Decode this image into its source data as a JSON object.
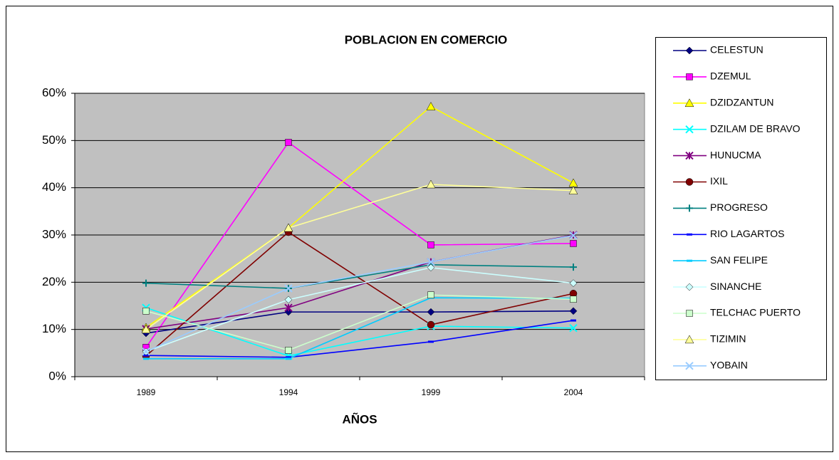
{
  "chart_data": {
    "type": "line",
    "title": "POBLACION  EN COMERCIO",
    "x_label": "AÑOS",
    "categories": [
      "1989",
      "1994",
      "1999",
      "2004"
    ],
    "ylim": [
      0,
      60
    ],
    "yticks": [
      {
        "value": 0,
        "label": "0%"
      },
      {
        "value": 10,
        "label": "10%"
      },
      {
        "value": 20,
        "label": "20%"
      },
      {
        "value": 30,
        "label": "30%"
      },
      {
        "value": 40,
        "label": "40%"
      },
      {
        "value": 50,
        "label": "50%"
      },
      {
        "value": 60,
        "label": "60%"
      }
    ],
    "grid": true,
    "plot_background": "#c0c0c0",
    "legend": "right",
    "series": [
      {
        "name": "CELESTUN",
        "color": "#000080",
        "marker": "diamond",
        "values": [
          9.2,
          13.7,
          13.7,
          13.9
        ]
      },
      {
        "name": "DZEMUL",
        "color": "#ff00ff",
        "marker": "square",
        "values": [
          6.2,
          49.6,
          27.9,
          28.2
        ]
      },
      {
        "name": "DZIDZANTUN",
        "color": "#ffff00",
        "marker": "triangle",
        "values": [
          10.4,
          31.5,
          57.2,
          41
        ]
      },
      {
        "name": "DZILAM DE BRAVO",
        "color": "#00ffff",
        "marker": "x",
        "values": [
          14.6,
          4.4,
          10.7,
          10.3
        ]
      },
      {
        "name": "HUNUCMA",
        "color": "#800080",
        "marker": "star",
        "values": [
          10.1,
          14.6,
          24.3,
          30
        ]
      },
      {
        "name": "IXIL",
        "color": "#800000",
        "marker": "circle",
        "values": [
          4.4,
          30.6,
          11,
          17.6
        ]
      },
      {
        "name": "PROGRESO",
        "color": "#008080",
        "marker": "plus",
        "values": [
          19.8,
          18.7,
          23.7,
          23.2
        ]
      },
      {
        "name": "RIO LAGARTOS",
        "color": "#0000ff",
        "marker": "dash",
        "values": [
          4.5,
          4.1,
          7.4,
          11.9
        ]
      },
      {
        "name": "SAN FELIPE",
        "color": "#00ccff",
        "marker": "dash",
        "values": [
          3.8,
          3.8,
          16.7,
          16.6
        ]
      },
      {
        "name": "SINANCHE",
        "color": "#ccffff",
        "marker": "diamond",
        "values": [
          5.3,
          16.3,
          23.1,
          19.8
        ]
      },
      {
        "name": "TELCHAC PUERTO",
        "color": "#ccffcc",
        "marker": "square",
        "values": [
          13.9,
          5.6,
          17.3,
          16.4
        ]
      },
      {
        "name": "TIZIMIN",
        "color": "#ffff99",
        "marker": "triangle",
        "values": [
          10,
          31.5,
          40.7,
          39.4
        ]
      },
      {
        "name": "YOBAIN",
        "color": "#99ccff",
        "marker": "x",
        "values": [
          5.3,
          18.7,
          24.3,
          29.9
        ]
      }
    ]
  }
}
